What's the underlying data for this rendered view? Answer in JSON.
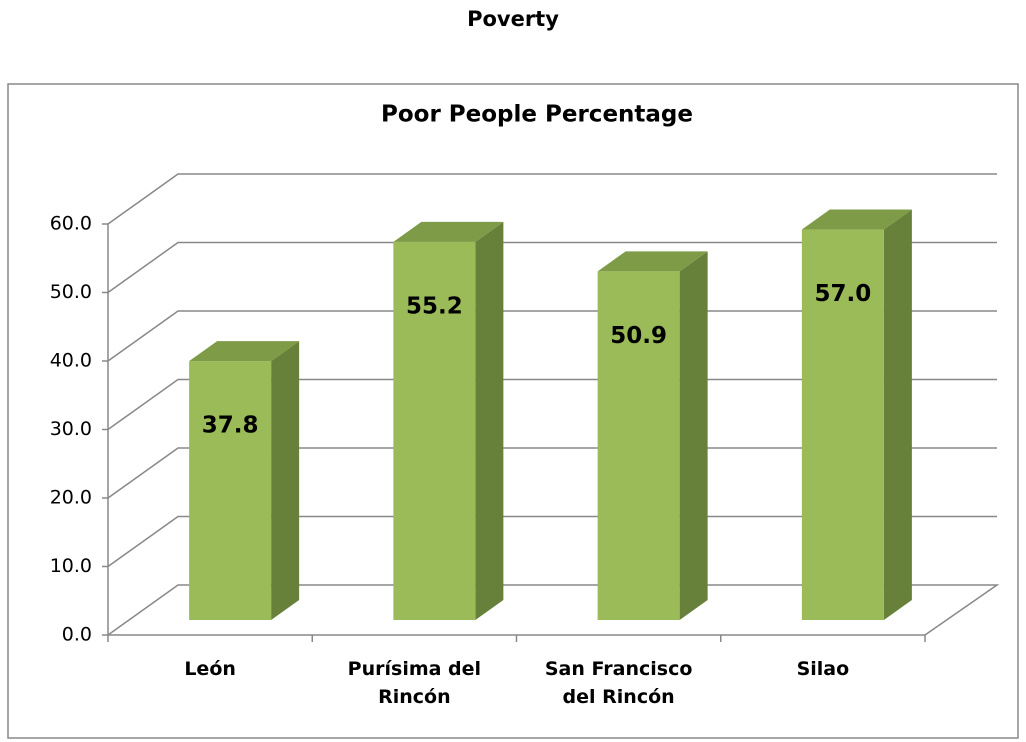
{
  "heading": "Poverty",
  "chart_data": {
    "type": "bar3d",
    "title": "Poor People Percentage",
    "categories": [
      "León",
      "Purísima del Rincón",
      "San Francisco del Rincón",
      "Silao"
    ],
    "values": [
      37.8,
      55.2,
      50.9,
      57.0
    ],
    "value_labels": [
      "37.8",
      "55.2",
      "50.9",
      "57.0"
    ],
    "color": "#9bbb59",
    "ylim": [
      0,
      60
    ],
    "yticks": [
      {
        "value": 0,
        "label": "0.0"
      },
      {
        "value": 10,
        "label": "10.0"
      },
      {
        "value": 20,
        "label": "20.0"
      },
      {
        "value": 30,
        "label": "30.0"
      },
      {
        "value": 40,
        "label": "40.0"
      },
      {
        "value": 50,
        "label": "50.0"
      },
      {
        "value": 60,
        "label": "60.0"
      }
    ],
    "grid": true
  }
}
